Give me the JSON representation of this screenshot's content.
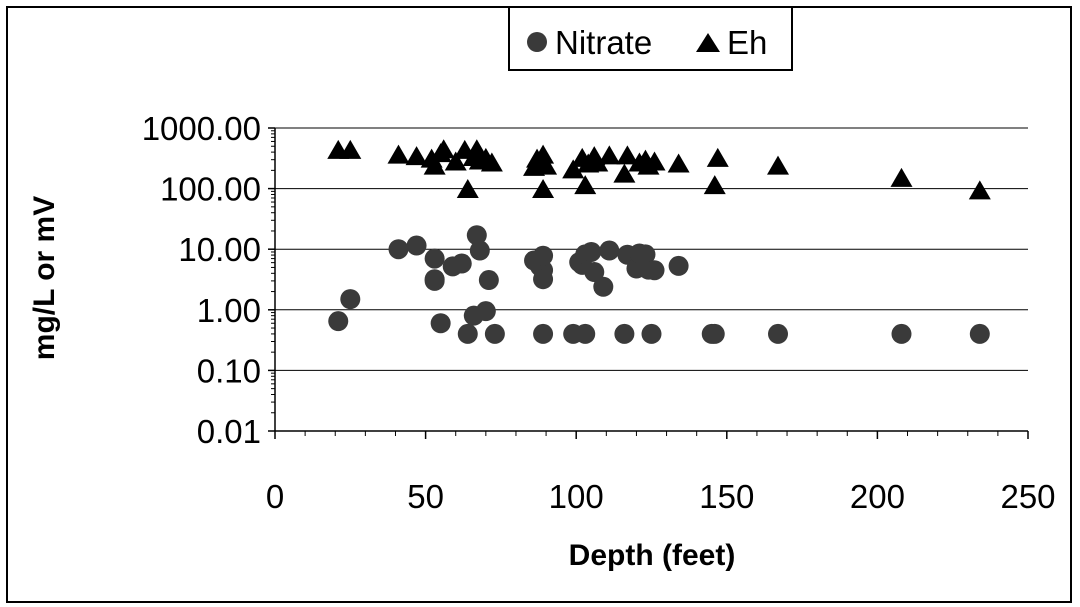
{
  "chart_data": {
    "type": "scatter",
    "x_scale": "linear",
    "y_scale": "log",
    "xlabel": "Depth (feet)",
    "ylabel": "mg/L or mV",
    "xlim": [
      0,
      250
    ],
    "ylim": [
      0.01,
      1000
    ],
    "x_ticks": [
      0,
      50,
      100,
      150,
      200,
      250
    ],
    "x_tick_labels": [
      "0",
      "50",
      "100",
      "150",
      "200",
      "250"
    ],
    "y_ticks": [
      0.01,
      0.1,
      1,
      10,
      100,
      1000
    ],
    "y_tick_labels": [
      "0.01",
      "0.10",
      "1.00",
      "10.00",
      "100.00",
      "1000.00"
    ],
    "grid": "horizontal major gridlines",
    "legend_position": "top-center",
    "series": [
      {
        "name": "Nitrate",
        "marker": "circle",
        "color": "#3a3a3a",
        "points": [
          [
            21,
            0.65
          ],
          [
            25,
            1.5
          ],
          [
            41,
            10
          ],
          [
            47,
            11.5
          ],
          [
            53,
            3.2
          ],
          [
            53,
            3.0
          ],
          [
            53,
            7
          ],
          [
            55,
            0.6
          ],
          [
            59,
            5.2
          ],
          [
            62,
            5.8
          ],
          [
            64,
            0.4
          ],
          [
            66,
            0.8
          ],
          [
            67,
            17
          ],
          [
            68,
            9.5
          ],
          [
            70,
            0.95
          ],
          [
            71,
            3.1
          ],
          [
            73,
            0.4
          ],
          [
            86,
            6.5
          ],
          [
            88,
            5.2
          ],
          [
            89,
            4.5
          ],
          [
            89,
            7.8
          ],
          [
            89,
            3.2
          ],
          [
            89,
            0.4
          ],
          [
            99,
            0.4
          ],
          [
            101,
            6.1
          ],
          [
            102,
            5.5
          ],
          [
            103,
            8.2
          ],
          [
            103,
            0.4
          ],
          [
            105,
            9.0
          ],
          [
            106,
            4.2
          ],
          [
            109,
            2.4
          ],
          [
            111,
            9.5
          ],
          [
            116,
            0.4
          ],
          [
            117,
            8.1
          ],
          [
            120,
            4.8
          ],
          [
            121,
            8.5
          ],
          [
            123,
            8.2
          ],
          [
            124,
            4.6
          ],
          [
            125,
            0.4
          ],
          [
            126,
            4.5
          ],
          [
            134,
            5.3
          ],
          [
            145,
            0.4
          ],
          [
            146,
            0.4
          ],
          [
            167,
            0.4
          ],
          [
            208,
            0.4
          ],
          [
            234,
            0.4
          ]
        ]
      },
      {
        "name": "Eh",
        "marker": "triangle",
        "color": "#000000",
        "points": [
          [
            21,
            420
          ],
          [
            25,
            420
          ],
          [
            41,
            350
          ],
          [
            47,
            330
          ],
          [
            52,
            300
          ],
          [
            53,
            230
          ],
          [
            55,
            370
          ],
          [
            56,
            430
          ],
          [
            60,
            270
          ],
          [
            63,
            420
          ],
          [
            64,
            95
          ],
          [
            66,
            320
          ],
          [
            67,
            430
          ],
          [
            68,
            280
          ],
          [
            70,
            310
          ],
          [
            72,
            260
          ],
          [
            86,
            220
          ],
          [
            87,
            300
          ],
          [
            88,
            260
          ],
          [
            89,
            350
          ],
          [
            89,
            95
          ],
          [
            90,
            230
          ],
          [
            99,
            200
          ],
          [
            102,
            310
          ],
          [
            103,
            110
          ],
          [
            104,
            250
          ],
          [
            106,
            330
          ],
          [
            107,
            260
          ],
          [
            111,
            340
          ],
          [
            116,
            170
          ],
          [
            117,
            340
          ],
          [
            121,
            260
          ],
          [
            123,
            290
          ],
          [
            124,
            230
          ],
          [
            126,
            270
          ],
          [
            134,
            250
          ],
          [
            146,
            110
          ],
          [
            147,
            310
          ],
          [
            167,
            230
          ],
          [
            208,
            145
          ],
          [
            234,
            90
          ]
        ]
      }
    ]
  }
}
